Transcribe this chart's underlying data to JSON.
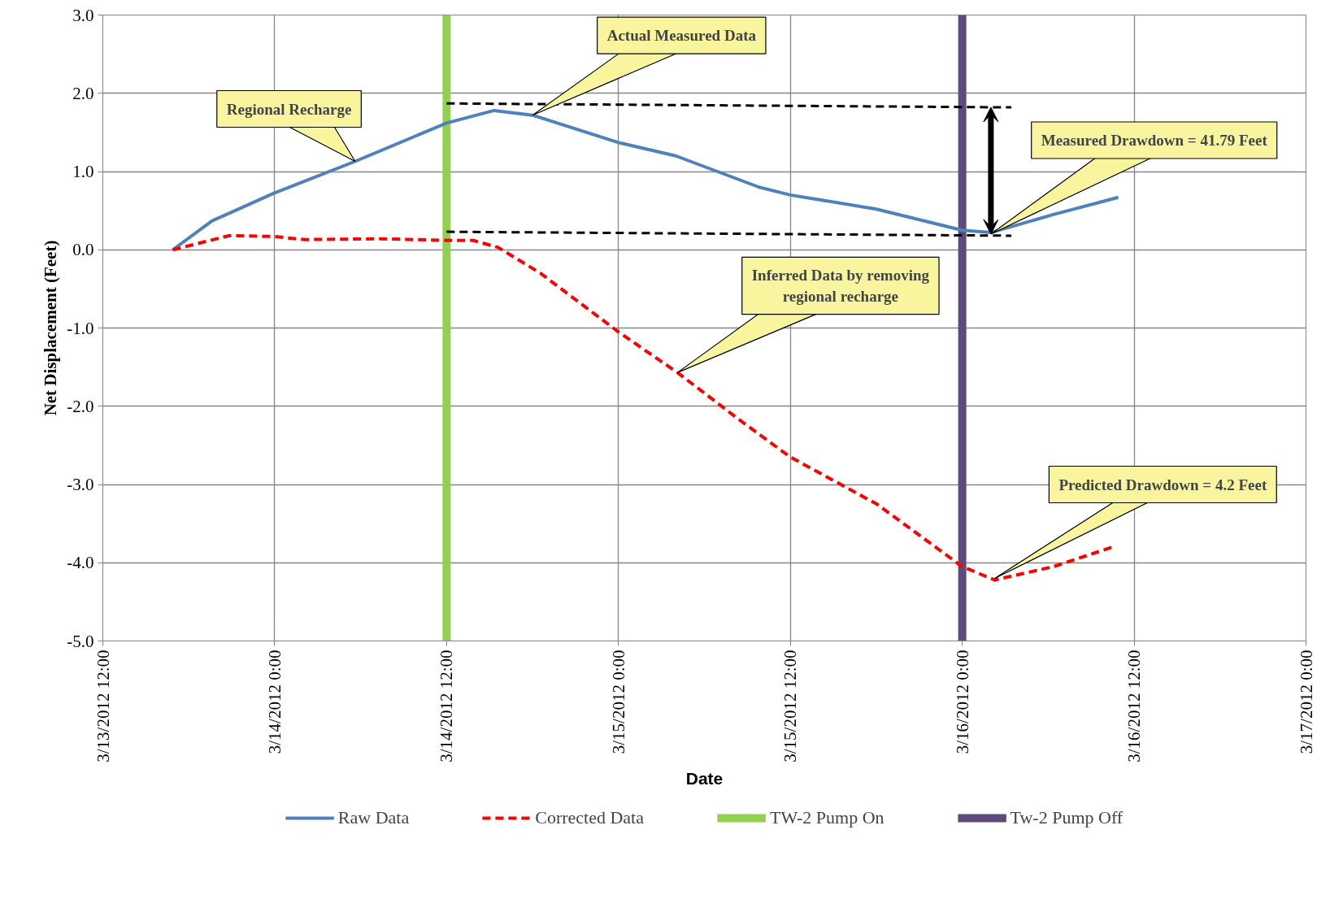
{
  "chart_data": {
    "type": "line",
    "xlabel": "Date",
    "ylabel": "Net Displacement (Feet)",
    "xlim": [
      "2012-03-13T12:00",
      "2012-03-17T00:00"
    ],
    "ylim": [
      -5,
      3
    ],
    "xticks": [
      {
        "value": "2012-03-13T12:00",
        "label": "3/13/2012 12:00"
      },
      {
        "value": "2012-03-14T00:00",
        "label": "3/14/2012 0:00"
      },
      {
        "value": "2012-03-14T12:00",
        "label": "3/14/2012 12:00"
      },
      {
        "value": "2012-03-15T00:00",
        "label": "3/15/2012 0:00"
      },
      {
        "value": "2012-03-15T12:00",
        "label": "3/15/2012 12:00"
      },
      {
        "value": "2012-03-16T00:00",
        "label": "3/16/2012 0:00"
      },
      {
        "value": "2012-03-16T12:00",
        "label": "3/16/2012 12:00"
      },
      {
        "value": "2012-03-17T00:00",
        "label": "3/17/2012 0:00"
      }
    ],
    "yticks": [
      {
        "value": 3,
        "label": "3.0"
      },
      {
        "value": 2,
        "label": "2.0"
      },
      {
        "value": 1,
        "label": "1.0"
      },
      {
        "value": 0,
        "label": "0.0"
      },
      {
        "value": -1,
        "label": "-1.0"
      },
      {
        "value": -2,
        "label": "-2.0"
      },
      {
        "value": -3,
        "label": "-3.0"
      },
      {
        "value": -4,
        "label": "-4.0"
      },
      {
        "value": -5,
        "label": "-5.0"
      }
    ],
    "grid": true,
    "legend": "bottom",
    "marker": "none",
    "series": [
      {
        "name": "Raw Data",
        "color": "#4f81bd",
        "line_style": "solid",
        "x": [
          "2012-03-13T16:53",
          "2012-03-13T19:38",
          "2012-03-13T23:55",
          "2012-03-14T05:37",
          "2012-03-14T12:00",
          "2012-03-14T15:19",
          "2012-03-14T18:00",
          "2012-03-15T00:00",
          "2012-03-15T04:00",
          "2012-03-15T09:49",
          "2012-03-15T12:00",
          "2012-03-15T18:00",
          "2012-03-16T00:00",
          "2012-03-16T02:00",
          "2012-03-16T06:22",
          "2012-03-16T10:54"
        ],
        "values": [
          0.0,
          0.37,
          0.72,
          1.13,
          1.62,
          1.78,
          1.72,
          1.37,
          1.2,
          0.8,
          0.7,
          0.52,
          0.25,
          0.22,
          0.45,
          0.67
        ]
      },
      {
        "name": "Corrected Data",
        "color": "#ff0000",
        "line_style": "dashed",
        "x": [
          "2012-03-13T16:53",
          "2012-03-13T20:49",
          "2012-03-13T23:55",
          "2012-03-14T02:06",
          "2012-03-14T07:23",
          "2012-03-14T12:00",
          "2012-03-14T13:51",
          "2012-03-14T15:36",
          "2012-03-14T18:33",
          "2012-03-15T00:00",
          "2012-03-15T04:07",
          "2012-03-15T08:38",
          "2012-03-15T12:00",
          "2012-03-15T18:02",
          "2012-03-16T00:00",
          "2012-03-16T02:16",
          "2012-03-16T06:22",
          "2012-03-16T10:29"
        ],
        "values": [
          0.0,
          0.18,
          0.17,
          0.13,
          0.14,
          0.12,
          0.12,
          0.03,
          -0.3,
          -1.05,
          -1.57,
          -2.2,
          -2.65,
          -3.25,
          -4.05,
          -4.22,
          -4.05,
          -3.8
        ]
      },
      {
        "color": "#000000",
        "line_style": "dashed",
        "x": [
          "2012-03-14T12:00",
          "2012-03-16T03:26"
        ],
        "values": [
          1.87,
          1.82
        ]
      },
      {
        "color": "#000000",
        "line_style": "dashed",
        "x": [
          "2012-03-14T12:00",
          "2012-03-16T03:26"
        ],
        "values": [
          0.23,
          0.18
        ]
      }
    ],
    "ref_lines": [
      {
        "axis": "x",
        "value": "2012-03-14T12:00",
        "label": "TW-2 Pump On",
        "color": "#92d050"
      },
      {
        "axis": "x",
        "value": "2012-03-16T00:00",
        "label": "Tw-2 Pump Off",
        "color": "#604a7b"
      }
    ],
    "annotations": [
      {
        "text": "Regional Recharge",
        "x": "2012-03-14T05:37",
        "y": 1.13
      },
      {
        "text": "Actual Measured Data",
        "x": "2012-03-14T18:00",
        "y": 1.72
      },
      {
        "text": "Measured Drawdown = 41.79 Feet",
        "x": "2012-03-16T02:00",
        "y": 0.2
      },
      {
        "text": "Inferred Data by removing regional recharge",
        "x": "2012-03-15T04:07",
        "y": -1.57
      },
      {
        "text": "Predicted Drawdown = 4.2 Feet",
        "x": "2012-03-16T02:16",
        "y": -4.2
      }
    ]
  }
}
